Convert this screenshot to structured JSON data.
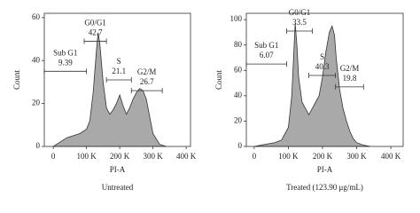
{
  "chart_data": [
    {
      "type": "area",
      "x_label": "PI-A",
      "y_label": "Count",
      "caption": "Untreated",
      "x": [
        0,
        20000,
        40000,
        60000,
        80000,
        100000,
        110000,
        120000,
        130000,
        135000,
        140000,
        150000,
        160000,
        170000,
        180000,
        190000,
        200000,
        210000,
        220000,
        230000,
        240000,
        250000,
        260000,
        270000,
        280000,
        290000,
        300000,
        320000,
        340000
      ],
      "values": [
        0,
        2,
        4,
        5,
        6,
        8,
        12,
        25,
        45,
        53,
        48,
        30,
        18,
        15,
        17,
        20,
        24,
        19,
        15,
        18,
        22,
        25,
        27,
        26,
        22,
        14,
        6,
        1,
        0
      ],
      "color": "#a9a9a9",
      "xlim": [
        -27000,
        413000
      ],
      "ylim": [
        0,
        62
      ],
      "xticks": [
        0,
        {
          "value": 100000,
          "label": "100 K"
        },
        {
          "value": 200000,
          "label": "200 K"
        },
        {
          "value": 300000,
          "label": "300 K"
        },
        {
          "value": 400000,
          "label": "400 K"
        }
      ],
      "yticks": [
        0,
        20,
        40,
        60
      ],
      "gates": [
        {
          "name": "Sub G1",
          "value": 9.39,
          "range": [
            -27000,
            100000
          ],
          "level": 35
        },
        {
          "name": "G0/G1",
          "value": 42.7,
          "range": [
            93000,
            160000
          ],
          "level": 49
        },
        {
          "name": "S",
          "value": 21.1,
          "range": [
            160000,
            235000
          ],
          "level": 31
        },
        {
          "name": "G2/M",
          "value": 26.7,
          "range": [
            235000,
            328000
          ],
          "level": 26
        }
      ]
    },
    {
      "type": "area",
      "x_label": "PI-A",
      "y_label": "Count",
      "caption": "Treated (123.90 μg/mL)",
      "x": [
        0,
        20000,
        40000,
        60000,
        80000,
        100000,
        110000,
        120000,
        125000,
        130000,
        140000,
        150000,
        160000,
        170000,
        180000,
        190000,
        200000,
        210000,
        220000,
        228000,
        235000,
        240000,
        250000,
        260000,
        270000,
        280000,
        290000,
        300000,
        320000,
        340000
      ],
      "values": [
        0,
        1,
        2,
        3,
        5,
        15,
        40,
        97,
        80,
        55,
        35,
        30,
        25,
        30,
        35,
        40,
        55,
        75,
        90,
        95,
        88,
        70,
        45,
        30,
        20,
        12,
        6,
        3,
        1,
        0
      ],
      "color": "#a9a9a9",
      "xlim": [
        -23000,
        436000
      ],
      "ylim": [
        0,
        105
      ],
      "xticks": [
        0,
        {
          "value": 100000,
          "label": "100 K"
        },
        {
          "value": 200000,
          "label": "200 K"
        },
        {
          "value": 300000,
          "label": "300 K"
        },
        {
          "value": 400000,
          "label": "400 K"
        }
      ],
      "yticks": [
        0,
        20,
        40,
        60,
        80,
        100
      ],
      "gates": [
        {
          "name": "Sub G1",
          "value": 6.07,
          "range": [
            -23000,
            95000
          ],
          "level": 65
        },
        {
          "name": "G0/G1",
          "value": 33.5,
          "range": [
            95000,
            170000
          ],
          "level": 91
        },
        {
          "name": "S",
          "value": 40.3,
          "range": [
            160000,
            238000
          ],
          "level": 56
        },
        {
          "name": "G2/M",
          "value": 19.8,
          "range": [
            238000,
            320000
          ],
          "level": 47
        }
      ]
    }
  ]
}
